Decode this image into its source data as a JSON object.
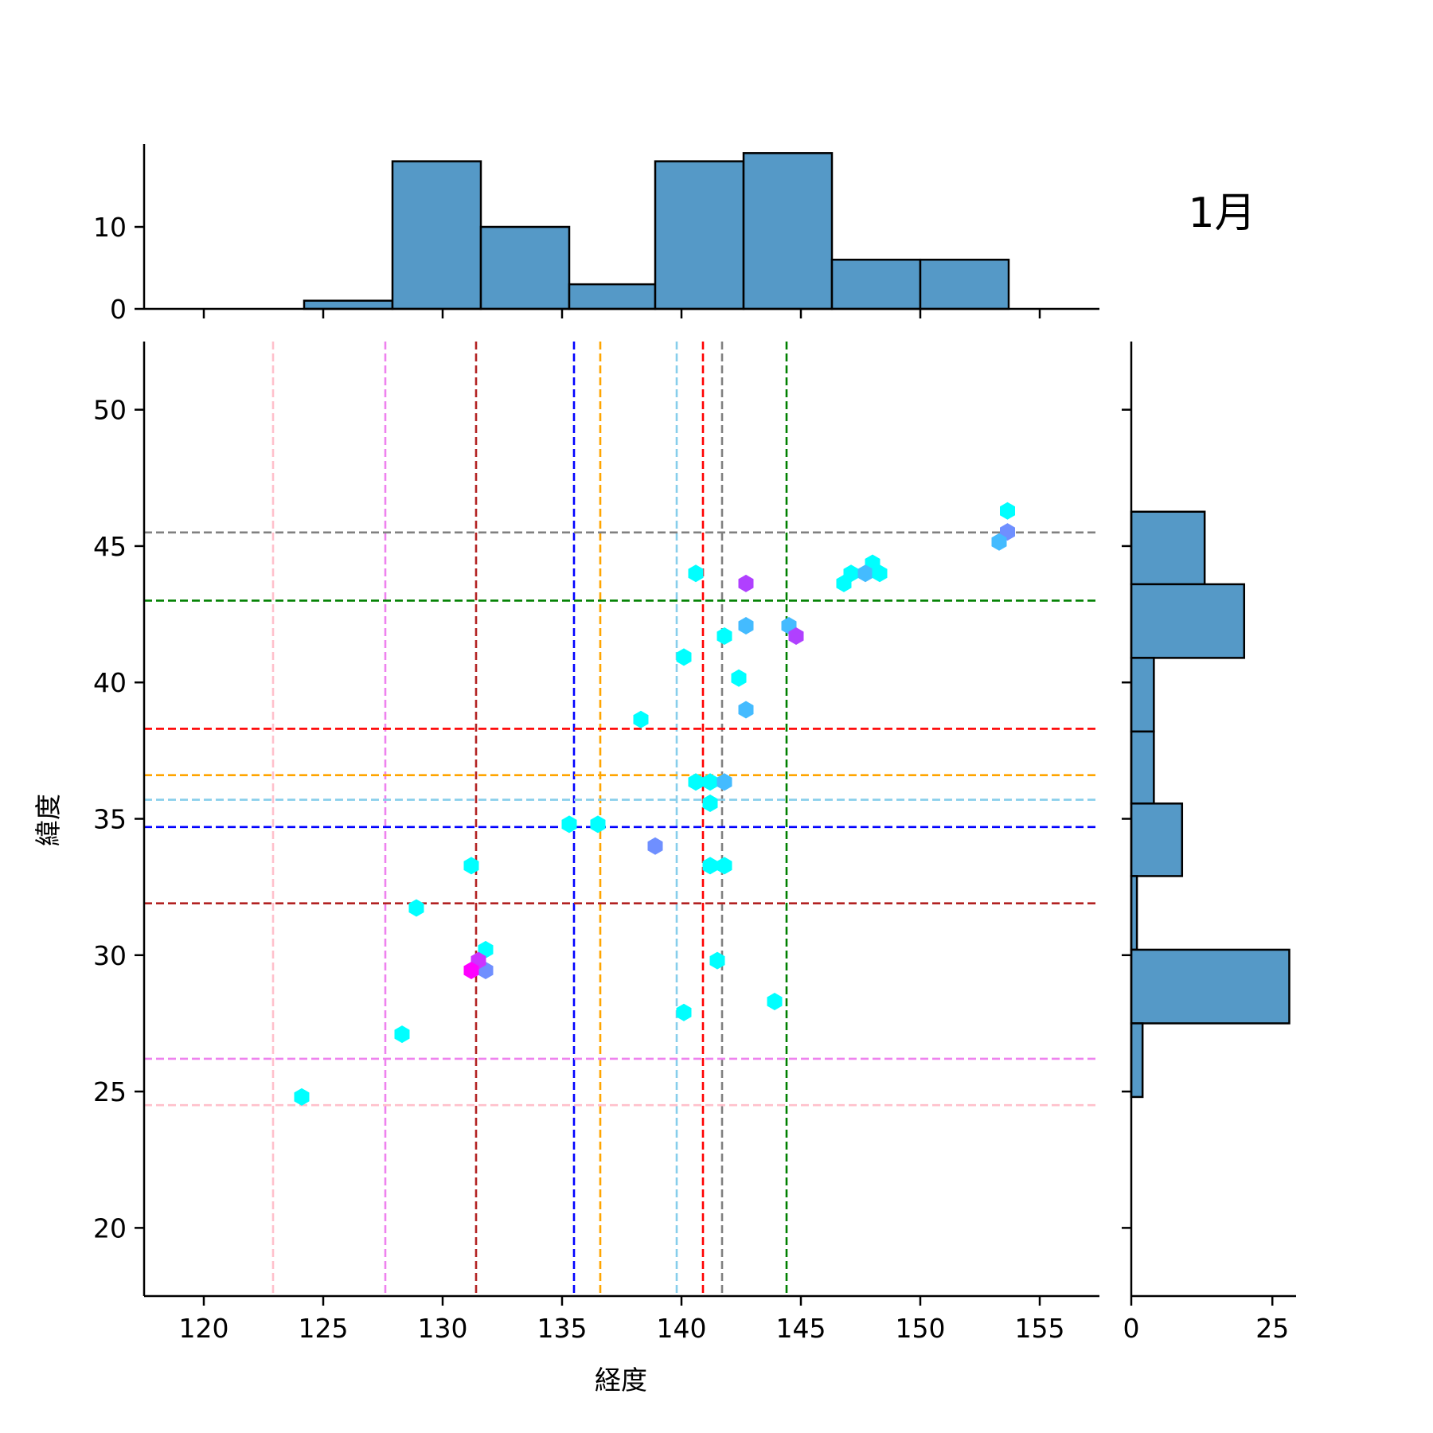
{
  "chart_data": {
    "type": "scatter",
    "title": "1月",
    "xlabel": "経度",
    "ylabel": "緯度",
    "xlim": [
      117.5,
      157.5
    ],
    "ylim": [
      17.5,
      52.5
    ],
    "xticks": [
      120,
      125,
      130,
      135,
      140,
      145,
      150,
      155
    ],
    "yticks": [
      20,
      25,
      30,
      35,
      40,
      45,
      50
    ],
    "grid": false,
    "points": [
      {
        "lon": 153.65,
        "lat": 46.29,
        "color": "#00ffff"
      },
      {
        "lon": 153.65,
        "lat": 45.52,
        "color": "#6f8fff"
      },
      {
        "lon": 153.3,
        "lat": 45.15,
        "color": "#44bbff"
      },
      {
        "lon": 148.0,
        "lat": 44.37,
        "color": "#00ffff"
      },
      {
        "lon": 147.1,
        "lat": 44.0,
        "color": "#00ffff"
      },
      {
        "lon": 147.7,
        "lat": 44.0,
        "color": "#44bbff"
      },
      {
        "lon": 148.3,
        "lat": 44.0,
        "color": "#00ffff"
      },
      {
        "lon": 146.8,
        "lat": 43.63,
        "color": "#00ffff"
      },
      {
        "lon": 140.6,
        "lat": 44.0,
        "color": "#00ffff"
      },
      {
        "lon": 142.7,
        "lat": 43.63,
        "color": "#b040ff"
      },
      {
        "lon": 142.7,
        "lat": 42.08,
        "color": "#44bbff"
      },
      {
        "lon": 144.5,
        "lat": 42.08,
        "color": "#44bbff"
      },
      {
        "lon": 144.8,
        "lat": 41.7,
        "color": "#b040ff"
      },
      {
        "lon": 141.8,
        "lat": 41.7,
        "color": "#00ffff"
      },
      {
        "lon": 140.1,
        "lat": 40.93,
        "color": "#00ffff"
      },
      {
        "lon": 142.4,
        "lat": 40.16,
        "color": "#00ffff"
      },
      {
        "lon": 142.7,
        "lat": 39.0,
        "color": "#44bbff"
      },
      {
        "lon": 138.3,
        "lat": 38.64,
        "color": "#00ffff"
      },
      {
        "lon": 140.6,
        "lat": 36.35,
        "color": "#00ffff"
      },
      {
        "lon": 141.2,
        "lat": 36.35,
        "color": "#00ffff"
      },
      {
        "lon": 141.8,
        "lat": 36.35,
        "color": "#44bbff"
      },
      {
        "lon": 141.2,
        "lat": 35.57,
        "color": "#00ffff"
      },
      {
        "lon": 135.3,
        "lat": 34.8,
        "color": "#00ffff"
      },
      {
        "lon": 136.5,
        "lat": 34.8,
        "color": "#00ffff"
      },
      {
        "lon": 138.9,
        "lat": 34.0,
        "color": "#6f8fff"
      },
      {
        "lon": 131.2,
        "lat": 33.28,
        "color": "#00ffff"
      },
      {
        "lon": 141.2,
        "lat": 33.28,
        "color": "#00ffff"
      },
      {
        "lon": 141.8,
        "lat": 33.28,
        "color": "#00ffff"
      },
      {
        "lon": 128.9,
        "lat": 31.73,
        "color": "#00ffff"
      },
      {
        "lon": 131.8,
        "lat": 30.2,
        "color": "#00ffff"
      },
      {
        "lon": 131.8,
        "lat": 29.44,
        "color": "#6f8fff"
      },
      {
        "lon": 131.5,
        "lat": 29.8,
        "color": "#cc33ff"
      },
      {
        "lon": 131.2,
        "lat": 29.44,
        "color": "#ff00ff"
      },
      {
        "lon": 141.5,
        "lat": 29.8,
        "color": "#00ffff"
      },
      {
        "lon": 143.9,
        "lat": 28.3,
        "color": "#00ffff"
      },
      {
        "lon": 140.1,
        "lat": 27.9,
        "color": "#00ffff"
      },
      {
        "lon": 128.3,
        "lat": 27.1,
        "color": "#00ffff"
      },
      {
        "lon": 124.1,
        "lat": 24.8,
        "color": "#00ffff"
      }
    ],
    "vlines": [
      {
        "lon": 122.9,
        "color": "#ffc0cb"
      },
      {
        "lon": 127.6,
        "color": "#ee82ee"
      },
      {
        "lon": 131.4,
        "color": "#b22222"
      },
      {
        "lon": 135.5,
        "color": "#0000ff"
      },
      {
        "lon": 136.6,
        "color": "#ffa500"
      },
      {
        "lon": 139.8,
        "color": "#87ceeb"
      },
      {
        "lon": 140.9,
        "color": "#ff0000"
      },
      {
        "lon": 141.7,
        "color": "#808080"
      },
      {
        "lon": 144.4,
        "color": "#008000"
      }
    ],
    "hlines": [
      {
        "lat": 45.5,
        "color": "#808080"
      },
      {
        "lat": 43.0,
        "color": "#008000"
      },
      {
        "lat": 38.3,
        "color": "#ff0000"
      },
      {
        "lat": 36.6,
        "color": "#ffa500"
      },
      {
        "lat": 35.7,
        "color": "#87ceeb"
      },
      {
        "lat": 34.7,
        "color": "#0000ff"
      },
      {
        "lat": 31.9,
        "color": "#b22222"
      },
      {
        "lat": 26.2,
        "color": "#ee82ee"
      },
      {
        "lat": 24.5,
        "color": "#ffc0cb"
      }
    ],
    "top_hist": {
      "edges": [
        124.2,
        127.9,
        131.6,
        135.3,
        138.9,
        142.6,
        146.3,
        150.0,
        153.7
      ],
      "counts": [
        1,
        18,
        10,
        3,
        18,
        19,
        6,
        6
      ],
      "ylim": [
        0,
        20.1
      ],
      "yticks": [
        0,
        10
      ],
      "color": "#5599c7"
    },
    "right_hist": {
      "edges": [
        46.26,
        43.6,
        40.9,
        38.2,
        35.56,
        32.9,
        30.2,
        27.5,
        24.8
      ],
      "counts": [
        13,
        20,
        4,
        4,
        9,
        1,
        28,
        2
      ],
      "xlim": [
        0,
        29.2
      ],
      "xticks": [
        0,
        25
      ],
      "color": "#5599c7"
    }
  }
}
